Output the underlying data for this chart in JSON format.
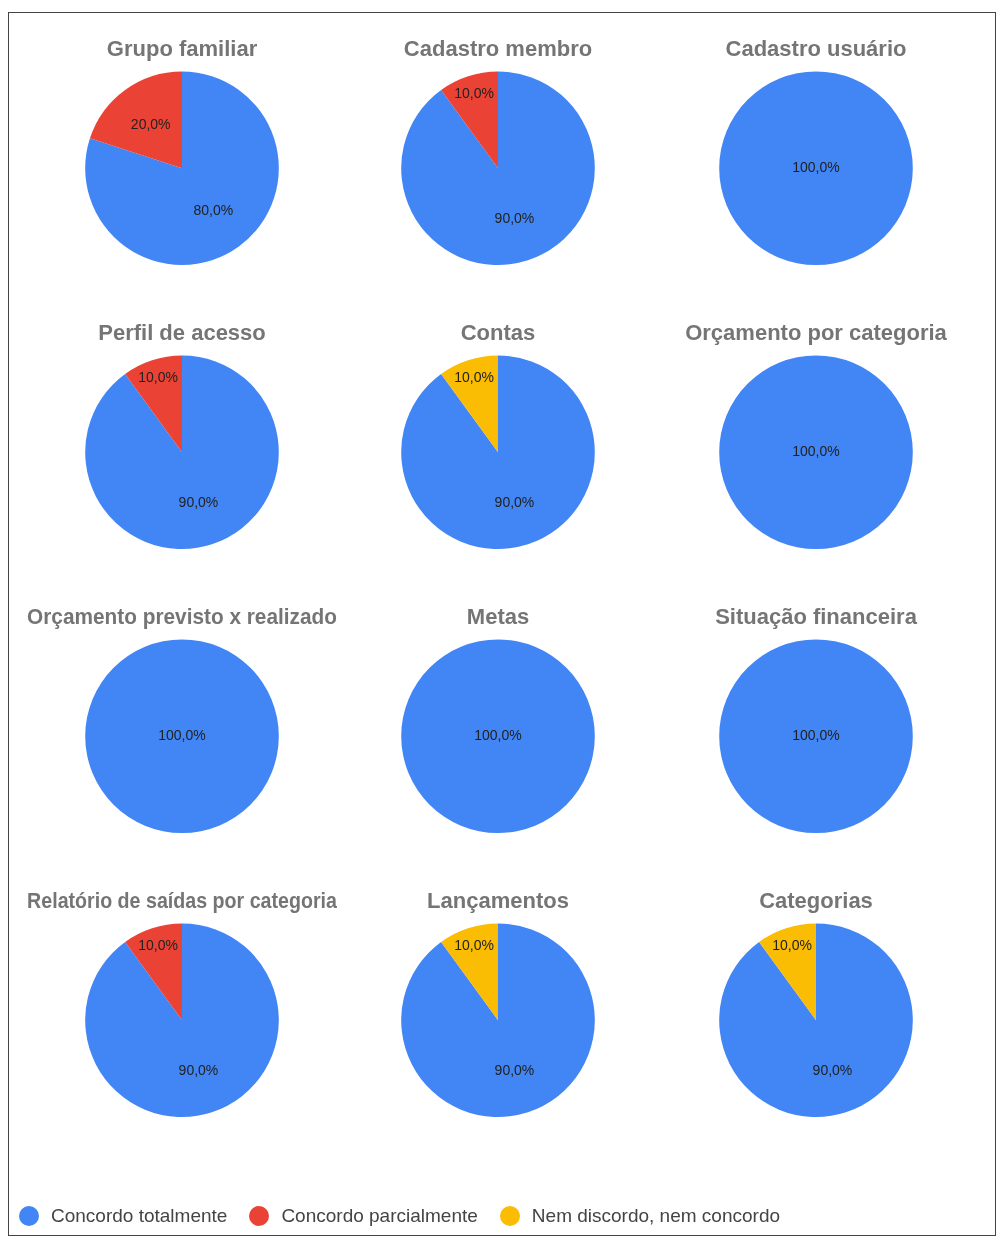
{
  "chart_data": [
    {
      "type": "pie",
      "title": "Grupo familiar",
      "categories": [
        "Concordo totalmente",
        "Concordo parcialmente",
        "Nem discordo, nem concordo"
      ],
      "values": [
        80,
        20,
        0
      ],
      "colors": [
        "#4285f4",
        "#ea4335",
        "#fbbc04"
      ],
      "value_labels": [
        "80,0%",
        "20,0%",
        null
      ],
      "legend": "bottom"
    },
    {
      "type": "pie",
      "title": "Cadastro membro",
      "categories": [
        null,
        null,
        null
      ],
      "values": [
        90,
        10,
        0
      ],
      "colors": [
        "#4285f4",
        "#ea4335",
        "#fbbc04"
      ],
      "value_labels": [
        "90,0%",
        "10,0%",
        null
      ]
    },
    {
      "type": "pie",
      "title": "Cadastro usuário",
      "categories": [
        null,
        null,
        null
      ],
      "values": [
        100,
        0,
        0
      ],
      "colors": [
        "#4285f4",
        "#ea4335",
        "#fbbc04"
      ],
      "value_labels": [
        "100,0%",
        null,
        null
      ]
    },
    {
      "type": "pie",
      "title": "Perfil de acesso",
      "categories": [
        null,
        null,
        null
      ],
      "values": [
        90,
        10,
        0
      ],
      "colors": [
        "#4285f4",
        "#ea4335",
        "#fbbc04"
      ],
      "value_labels": [
        "90,0%",
        "10,0%",
        null
      ]
    },
    {
      "type": "pie",
      "title": "Contas",
      "categories": [
        null,
        null,
        null
      ],
      "values": [
        90,
        0,
        10
      ],
      "colors": [
        "#4285f4",
        "#ea4335",
        "#fbbc04"
      ],
      "value_labels": [
        "90,0%",
        null,
        "10,0%"
      ]
    },
    {
      "type": "pie",
      "title": "Orçamento por categoria",
      "categories": [
        null,
        null,
        null
      ],
      "values": [
        100,
        0,
        0
      ],
      "colors": [
        "#4285f4",
        "#ea4335",
        "#fbbc04"
      ],
      "value_labels": [
        "100,0%",
        null,
        null
      ]
    },
    {
      "type": "pie",
      "title": "Orçamento previsto x realizado",
      "categories": [
        null,
        null,
        null
      ],
      "values": [
        100,
        0,
        0
      ],
      "colors": [
        "#4285f4",
        "#ea4335",
        "#fbbc04"
      ],
      "value_labels": [
        "100,0%",
        null,
        null
      ]
    },
    {
      "type": "pie",
      "title": "Metas",
      "categories": [
        null,
        null,
        null
      ],
      "values": [
        100,
        0,
        0
      ],
      "colors": [
        "#4285f4",
        "#ea4335",
        "#fbbc04"
      ],
      "value_labels": [
        "100,0%",
        null,
        null
      ]
    },
    {
      "type": "pie",
      "title": "Situação financeira",
      "categories": [
        null,
        null,
        null
      ],
      "values": [
        100,
        0,
        0
      ],
      "colors": [
        "#4285f4",
        "#ea4335",
        "#fbbc04"
      ],
      "value_labels": [
        "100,0%",
        null,
        null
      ]
    },
    {
      "type": "pie",
      "title": "Relatório de saídas por categoria",
      "categories": [
        null,
        null,
        null
      ],
      "values": [
        90,
        10,
        0
      ],
      "colors": [
        "#4285f4",
        "#ea4335",
        "#fbbc04"
      ],
      "value_labels": [
        "90,0%",
        "10,0%",
        null
      ]
    },
    {
      "type": "pie",
      "title": "Lançamentos",
      "categories": [
        null,
        null,
        null
      ],
      "values": [
        90,
        0,
        10
      ],
      "colors": [
        "#4285f4",
        "#ea4335",
        "#fbbc04"
      ],
      "value_labels": [
        "90,0%",
        null,
        "10,0%"
      ]
    },
    {
      "type": "pie",
      "title": "Categorias",
      "categories": [
        null,
        null,
        null
      ],
      "values": [
        90,
        0,
        10
      ],
      "colors": [
        "#4285f4",
        "#ea4335",
        "#fbbc04"
      ],
      "value_labels": [
        "90,0%",
        null,
        "10,0%"
      ]
    }
  ]
}
